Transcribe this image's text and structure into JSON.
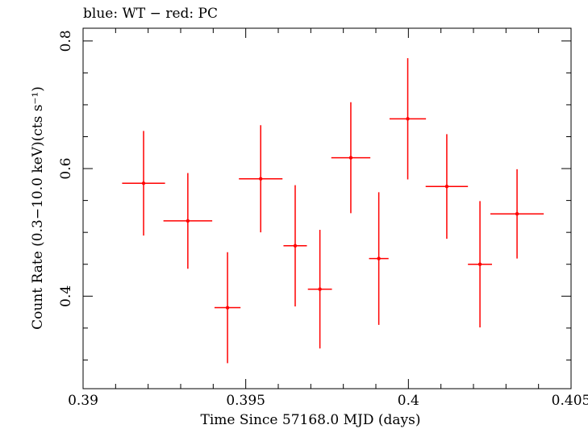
{
  "chart_data": {
    "type": "scatter",
    "title": "blue: WT − red: PC",
    "xlabel": "Time Since 57168.0 MJD (days)",
    "ylabel": "Count Rate (0.3−10.0 keV)(cts s⁻¹)",
    "xlim": [
      0.39,
      0.405
    ],
    "ylim": [
      0.255,
      0.82
    ],
    "x_ticks": [
      0.39,
      0.395,
      0.4,
      0.405
    ],
    "x_tick_labels": [
      "0.39",
      "0.395",
      "0.4",
      "0.405"
    ],
    "y_ticks": [
      0.4,
      0.6,
      0.8
    ],
    "y_tick_labels": [
      "0.4",
      "0.6",
      "0.8"
    ],
    "grid": false,
    "series": [
      {
        "color": "#ff0000",
        "points": [
          {
            "x": 0.39186,
            "xerr": 0.00066,
            "y": 0.577,
            "yerr": 0.082
          },
          {
            "x": 0.39322,
            "xerr": 0.00075,
            "y": 0.518,
            "yerr": 0.075
          },
          {
            "x": 0.39444,
            "xerr": 0.0004,
            "y": 0.382,
            "yerr": 0.087
          },
          {
            "x": 0.39546,
            "xerr": 0.00067,
            "y": 0.584,
            "yerr": 0.084
          },
          {
            "x": 0.39652,
            "xerr": 0.00036,
            "y": 0.479,
            "yerr": 0.095
          },
          {
            "x": 0.39728,
            "xerr": 0.00037,
            "y": 0.411,
            "yerr": 0.093
          },
          {
            "x": 0.39823,
            "xerr": 0.0006,
            "y": 0.617,
            "yerr": 0.087
          },
          {
            "x": 0.39909,
            "xerr": 0.0003,
            "y": 0.459,
            "yerr": 0.104
          },
          {
            "x": 0.39998,
            "xerr": 0.00056,
            "y": 0.678,
            "yerr": 0.095
          },
          {
            "x": 0.40118,
            "xerr": 0.00065,
            "y": 0.572,
            "yerr": 0.082
          },
          {
            "x": 0.4022,
            "xerr": 0.00037,
            "y": 0.45,
            "yerr": 0.099
          },
          {
            "x": 0.40334,
            "xerr": 0.00082,
            "y": 0.529,
            "yerr": 0.07
          }
        ]
      }
    ]
  }
}
